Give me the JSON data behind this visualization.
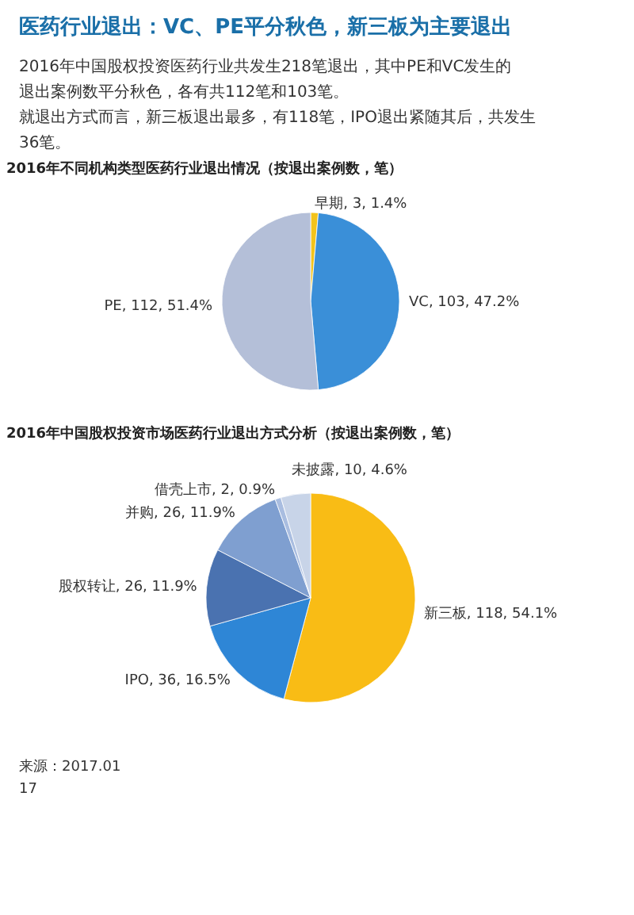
{
  "chart_data": [
    {
      "type": "pie",
      "title": "2016年不同机构类型医药行业退出情况（按退出案例数，笔）",
      "annotations": [
        "医药行业退出：VC、PE平分秋色，新三板为主要退出",
        "2016年中国股权投资医药行业共发生218笔退出，其中PE和VC发生的退出案例数平分秋色，各有共112笔和103笔。",
        "就退出方式而言，新三板退出最多，有118笔，IPO退出紧随其后，共发生36笔。"
      ],
      "categories": [
        "早期",
        "VC",
        "PE"
      ],
      "values": [
        3,
        103,
        112
      ],
      "value_labels": [
        "3, 1.4%",
        "103, 47.2%",
        "112, 51.4%"
      ],
      "colors": [
        "#f2c31c",
        "#3a8fd8",
        "#b4bfd8"
      ]
    },
    {
      "type": "pie",
      "title": "2016年中国股权投资市场医药行业退出方式分析（按退出案例数，笔）",
      "annotations": [
        "来源：2017.01",
        "17"
      ],
      "categories": [
        "新三板",
        "IPO",
        "股权转让",
        "并购",
        "借壳上市",
        "未披露"
      ],
      "values": [
        118,
        36,
        26,
        26,
        2,
        10
      ],
      "value_labels": [
        "118, 54.1%",
        "36, 16.5%",
        "26, 11.9%",
        "26, 11.9%",
        "2, 0.9%",
        "10, 4.6%"
      ],
      "colors": [
        "#f9bc15",
        "#2e86d6",
        "#4a72b0",
        "#7f9fd0",
        "#a9bde0",
        "#c8d4e8"
      ]
    }
  ]
}
